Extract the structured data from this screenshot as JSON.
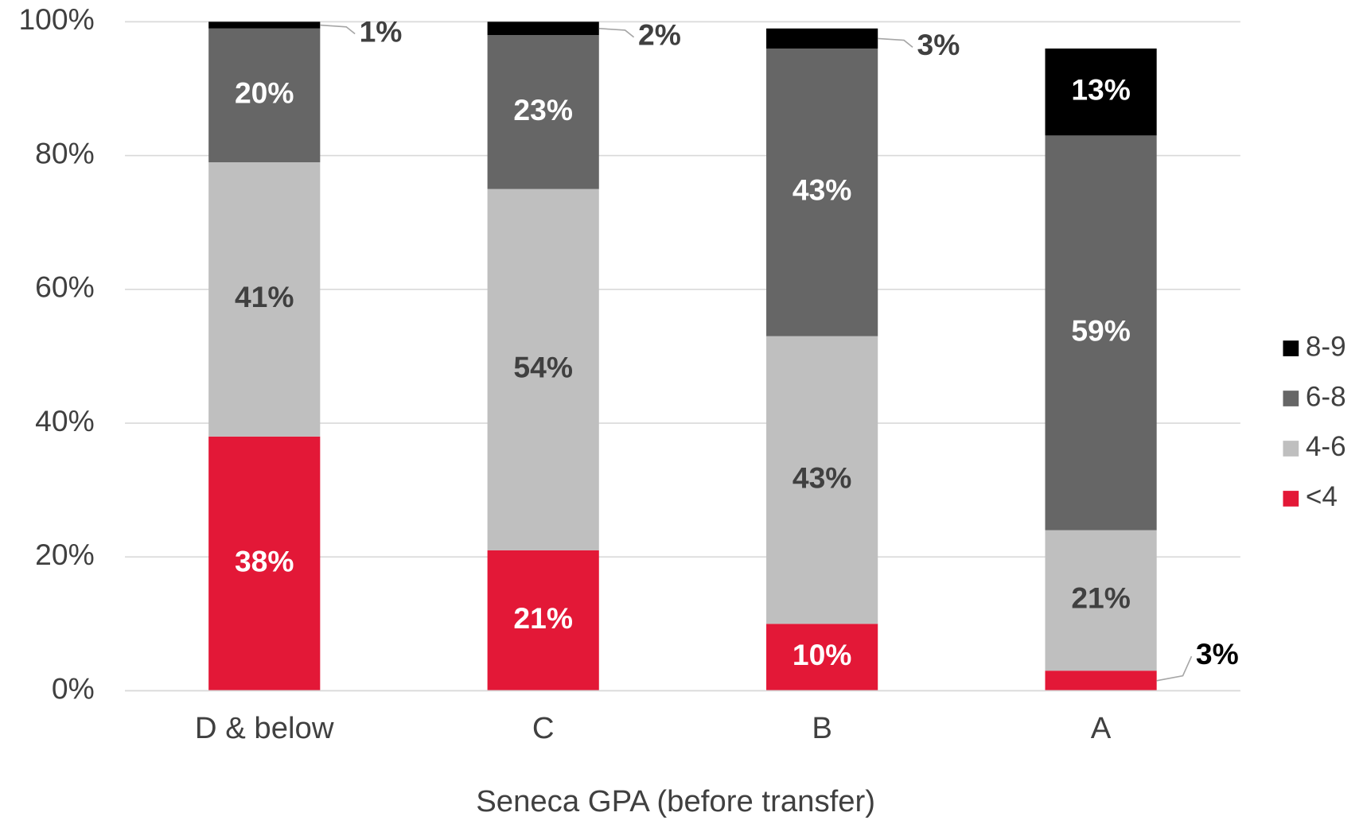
{
  "chart_data": {
    "type": "stacked_bar",
    "x_label": "Seneca GPA (before transfer)",
    "categories": [
      "D & below",
      "C",
      "B",
      "A"
    ],
    "series": [
      {
        "name": "<4",
        "color": "#e31837",
        "values": [
          38,
          21,
          10,
          3
        ],
        "value_labels": [
          "38%",
          "21%",
          "10%",
          "3%"
        ]
      },
      {
        "name": "4-6",
        "color": "#bfbfbf",
        "values": [
          41,
          54,
          43,
          21
        ],
        "value_labels": [
          "41%",
          "54%",
          "43%",
          "21%"
        ]
      },
      {
        "name": "6-8",
        "color": "#666666",
        "values": [
          20,
          23,
          43,
          59
        ],
        "value_labels": [
          "20%",
          "23%",
          "43%",
          "59%"
        ]
      },
      {
        "name": "8-9",
        "color": "#000000",
        "values": [
          1,
          2,
          3,
          13
        ],
        "value_labels": [
          "1%",
          "2%",
          "3%",
          "13%"
        ]
      }
    ],
    "ylim": [
      0,
      100
    ],
    "yticks": [
      {
        "value": 0,
        "label": "0%"
      },
      {
        "value": 20,
        "label": "20%"
      },
      {
        "value": 40,
        "label": "40%"
      },
      {
        "value": 60,
        "label": "60%"
      },
      {
        "value": 80,
        "label": "80%"
      },
      {
        "value": 100,
        "label": "100%"
      }
    ],
    "grid": true,
    "legend": "right"
  }
}
